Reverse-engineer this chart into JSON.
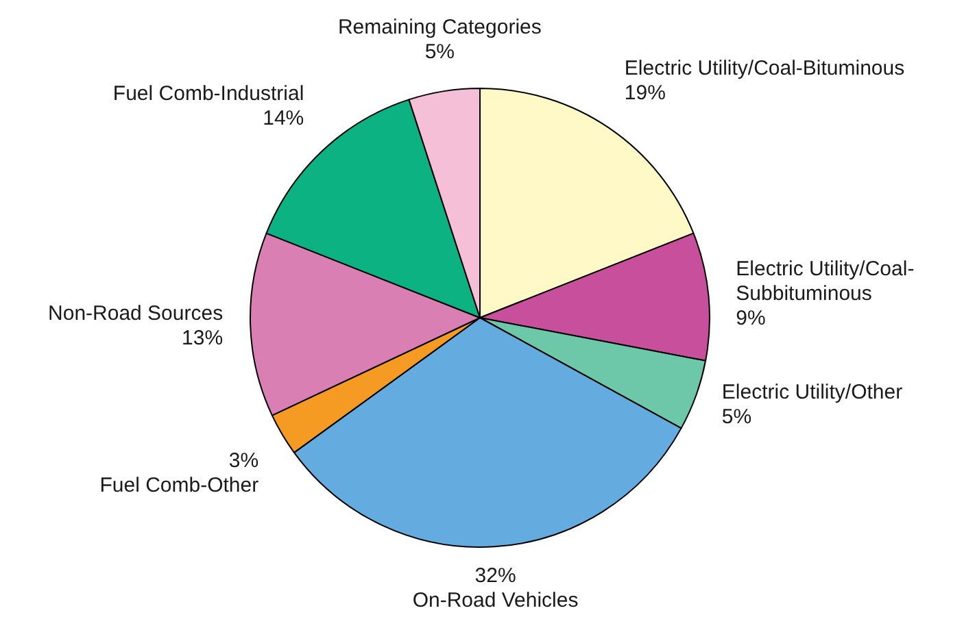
{
  "chart_data": {
    "type": "pie",
    "categories": [
      "Electric Utility/Coal-Bituminous",
      "Electric Utility/Coal-Subbituminous",
      "Electric Utility/Other",
      "On-Road Vehicles",
      "Fuel Comb-Other",
      "Non-Road Sources",
      "Fuel Comb-Industrial",
      "Remaining Categories"
    ],
    "values": [
      19,
      9,
      5,
      32,
      3,
      13,
      14,
      5
    ],
    "colors": [
      "#fff9c8",
      "#c84f9c",
      "#6cc8a8",
      "#64acdf",
      "#f59a22",
      "#d97fb4",
      "#0db283",
      "#f6bfd8"
    ],
    "value_labels": [
      "19%",
      "9%",
      "5%",
      "32%",
      "3%",
      "13%",
      "14%",
      "5%"
    ],
    "legend": false
  }
}
